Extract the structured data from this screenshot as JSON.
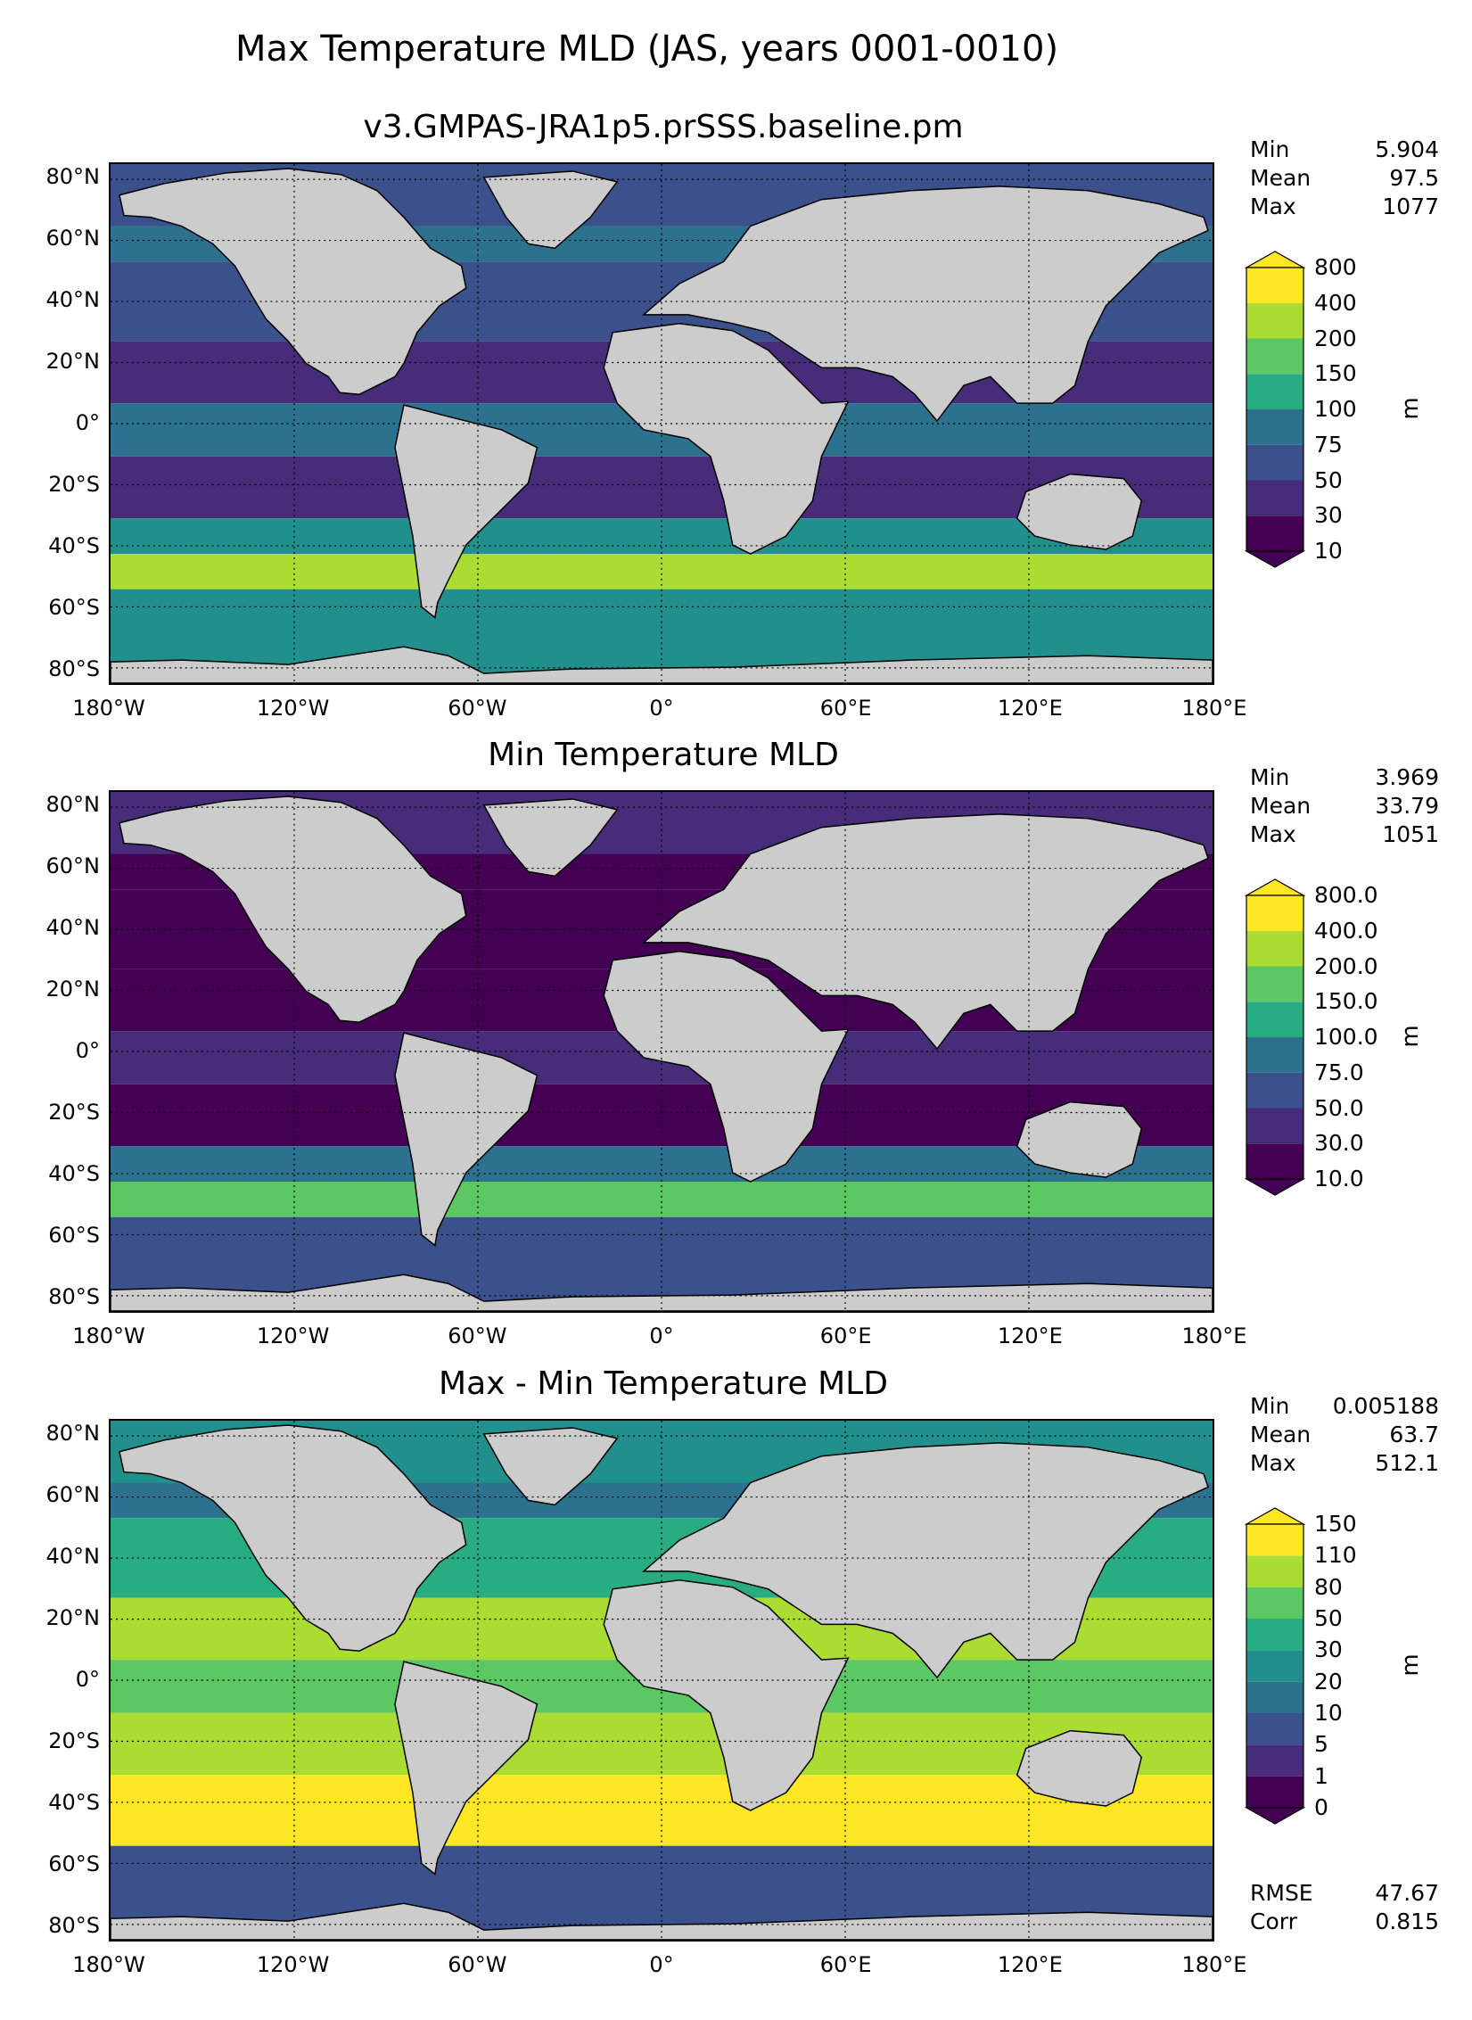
{
  "figure": {
    "title": "Max Temperature MLD (JAS, years 0001-0010)"
  },
  "axes": {
    "lat_ticks": [
      "80°N",
      "60°N",
      "40°N",
      "20°N",
      "0°",
      "20°S",
      "40°S",
      "60°S",
      "80°S"
    ],
    "lon_ticks": [
      "180°W",
      "120°W",
      "60°W",
      "0°",
      "60°E",
      "120°E",
      "180°E"
    ]
  },
  "panels": [
    {
      "title": "v3.GMPAS-JRA1p5.prSSS.baseline.pm",
      "stats": [
        {
          "label": "Min",
          "value": "5.904"
        },
        {
          "label": "Mean",
          "value": "97.5"
        },
        {
          "label": "Max",
          "value": "1077"
        }
      ],
      "colorbar": {
        "levels": [
          "10",
          "30",
          "50",
          "75",
          "100",
          "150",
          "200",
          "400",
          "800"
        ],
        "colors": [
          "#440154",
          "#472c7a",
          "#3b518b",
          "#2c718e",
          "#21908d",
          "#27ad81",
          "#5cc863",
          "#aadc32",
          "#fde725"
        ],
        "unit": "m"
      },
      "ocean_palette": {
        "polar": "#3b518b",
        "subpolar": "#2c718e",
        "midlat": "#3b518b",
        "subtrop": "#472c7a",
        "tropic": "#2c718e",
        "south40": "#21908d",
        "southern": "#aadc32",
        "antarctic": "#21908d"
      }
    },
    {
      "title": "Min Temperature MLD",
      "stats": [
        {
          "label": "Min",
          "value": "3.969"
        },
        {
          "label": "Mean",
          "value": "33.79"
        },
        {
          "label": "Max",
          "value": "1051"
        }
      ],
      "colorbar": {
        "levels": [
          "10.0",
          "30.0",
          "50.0",
          "75.0",
          "100.0",
          "150.0",
          "200.0",
          "400.0",
          "800.0"
        ],
        "colors": [
          "#440154",
          "#472c7a",
          "#3b518b",
          "#2c718e",
          "#21908d",
          "#27ad81",
          "#5cc863",
          "#aadc32",
          "#fde725"
        ],
        "unit": "m"
      },
      "ocean_palette": {
        "polar": "#472c7a",
        "subpolar": "#440154",
        "midlat": "#440154",
        "subtrop": "#440154",
        "tropic": "#472c7a",
        "south40": "#2c718e",
        "southern": "#5cc863",
        "antarctic": "#3b518b"
      }
    },
    {
      "title": "Max - Min Temperature MLD",
      "stats": [
        {
          "label": "Min",
          "value": "0.005188"
        },
        {
          "label": "Mean",
          "value": "63.7"
        },
        {
          "label": "Max",
          "value": "512.1"
        }
      ],
      "colorbar": {
        "levels": [
          "0",
          "1",
          "5",
          "10",
          "20",
          "30",
          "50",
          "80",
          "110",
          "150"
        ],
        "colors": [
          "#440154",
          "#472c7a",
          "#3b518b",
          "#2c718e",
          "#21908d",
          "#27ad81",
          "#5cc863",
          "#aadc32",
          "#fde725"
        ],
        "unit": "m"
      },
      "ocean_palette": {
        "polar": "#21908d",
        "subpolar": "#2c718e",
        "midlat": "#27ad81",
        "subtrop": "#aadc32",
        "tropic": "#5cc863",
        "south40": "#fde725",
        "southern": "#fde725",
        "antarctic": "#3b518b"
      },
      "extra_stats": [
        {
          "label": "RMSE",
          "value": "47.67"
        },
        {
          "label": "Corr",
          "value": "0.815"
        }
      ]
    }
  ],
  "land_color": "#cccccc"
}
